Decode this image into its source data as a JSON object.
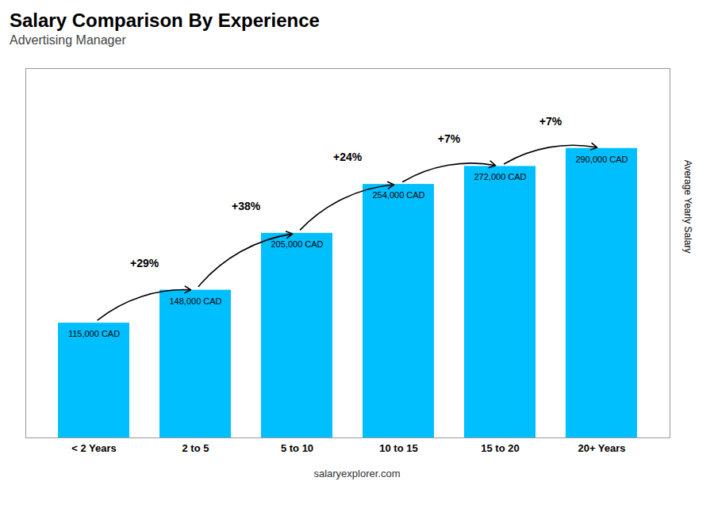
{
  "chart_data": {
    "type": "bar",
    "title": "Salary Comparison By Experience",
    "subtitle": "Advertising Manager",
    "ylabel": "Average Yearly Salary",
    "caption": "salaryexplorer.com",
    "categories": [
      "< 2 Years",
      "2 to 5",
      "5 to 10",
      "10 to 15",
      "15 to 20",
      "20+ Years"
    ],
    "values": [
      115000,
      148000,
      205000,
      254000,
      272000,
      290000
    ],
    "value_labels": [
      "115,000 CAD",
      "148,000 CAD",
      "205,000 CAD",
      "254,000 CAD",
      "272,000 CAD",
      "290,000 CAD"
    ],
    "data_labels": true,
    "annotations": [
      {
        "text": "+29%",
        "from": "< 2 Years",
        "to": "2 to 5"
      },
      {
        "text": "+38%",
        "from": "2 to 5",
        "to": "5 to 10"
      },
      {
        "text": "+24%",
        "from": "5 to 10",
        "to": "10 to 15"
      },
      {
        "text": "+7%",
        "from": "10 to 15",
        "to": "15 to 20"
      },
      {
        "text": "+7%",
        "from": "15 to 20",
        "to": "20+ Years"
      }
    ],
    "color": "#00BFFF",
    "ylim": [
      0,
      370000
    ],
    "grid": false,
    "tick_labels": "x"
  }
}
